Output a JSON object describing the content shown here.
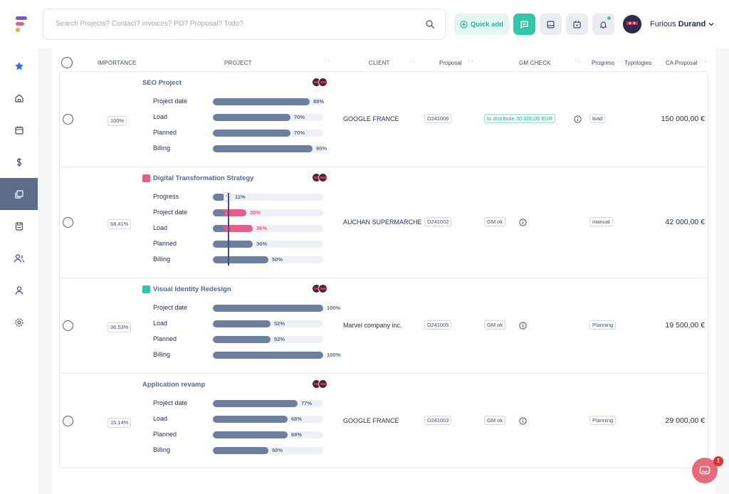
{
  "header": {
    "search_placeholder": "Search Projects? Contact? invoices? PO? Proposal? Todo?",
    "quick_add_label": "Quick add",
    "user_first": "Furious",
    "user_last": "Durand",
    "colors": {
      "accent": "#2ec8a8",
      "brand_pink": "#ec5a8b",
      "brand_purple": "#7a4ef0",
      "bar": "#6a7fa2"
    }
  },
  "sidebar": {
    "items": [
      {
        "icon": "star-icon"
      },
      {
        "icon": "home-icon"
      },
      {
        "icon": "calendar-icon"
      },
      {
        "icon": "dollar-icon"
      },
      {
        "icon": "projects-icon",
        "active": true
      },
      {
        "icon": "save-icon"
      },
      {
        "icon": "contacts-icon"
      },
      {
        "icon": "user-icon"
      },
      {
        "icon": "settings-icon"
      }
    ]
  },
  "table": {
    "headers": {
      "importance": "IMPORTANCE",
      "project": "PROJECT",
      "client": "CLIENT",
      "proposal": "Proposal",
      "gm_check": "GM CHECK",
      "progress": "Progress",
      "typologies": "Typologies",
      "ca_proposal": "CA Proposal"
    },
    "sort_glyph": "↑↓",
    "rows": [
      {
        "importance": "100%",
        "title": "SEO Project",
        "color": "",
        "metrics": [
          {
            "label": "Project date",
            "value": 88,
            "text": "88%"
          },
          {
            "label": "Load",
            "value": 70,
            "text": "70%"
          },
          {
            "label": "Planned",
            "value": 70,
            "text": "70%"
          },
          {
            "label": "Billing",
            "value": 90,
            "text": "90%"
          }
        ],
        "client": "GOOGLE FRANCE",
        "proposal": "D241006",
        "gm_check": "to distribute 30 000,00 EUR",
        "progress": "load",
        "ca_proposal": "150 000,00 €"
      },
      {
        "importance": "68.41%",
        "title": "Digital Transformation Strategy",
        "color": "#ec5a8b",
        "metrics": [
          {
            "label": "Progress",
            "value": 11,
            "text": "11%",
            "handle": "III"
          },
          {
            "label": "Project date",
            "value": 30,
            "text": "30%",
            "pink": true
          },
          {
            "label": "Load",
            "value": 36,
            "text": "36%",
            "pink": true
          },
          {
            "label": "Planned",
            "value": 36,
            "text": "36%"
          },
          {
            "label": "Billing",
            "value": 50,
            "text": "50%"
          }
        ],
        "client": "AUCHAN SUPERMARCHE",
        "proposal": "D241002",
        "gm_check": "GM ok",
        "progress": "manual",
        "ca_proposal": "42 000,00 €"
      },
      {
        "importance": "36.53%",
        "title": "Visual Identity Redesign",
        "color": "#2ec8a8",
        "metrics": [
          {
            "label": "Project date",
            "value": 100,
            "text": "100%"
          },
          {
            "label": "Load",
            "value": 52,
            "text": "52%"
          },
          {
            "label": "Planned",
            "value": 52,
            "text": "52%"
          },
          {
            "label": "Billing",
            "value": 100,
            "text": "100%"
          }
        ],
        "client": "Marvel company inc.",
        "proposal": "D241005",
        "gm_check": "GM ok",
        "progress": "Planning",
        "ca_proposal": "19 500,00 €"
      },
      {
        "importance": "15.14%",
        "title": "Application revamp",
        "color": "",
        "metrics": [
          {
            "label": "Project date",
            "value": 77,
            "text": "77%"
          },
          {
            "label": "Load",
            "value": 68,
            "text": "68%"
          },
          {
            "label": "Planned",
            "value": 68,
            "text": "68%"
          },
          {
            "label": "Billing",
            "value": 50,
            "text": "50%"
          }
        ],
        "client": "GOOGLE FRANCE",
        "proposal": "D241003",
        "gm_check": "GM ok",
        "progress": "Planning",
        "ca_proposal": "29 000,00 €"
      }
    ]
  },
  "chat": {
    "badge": "1"
  }
}
